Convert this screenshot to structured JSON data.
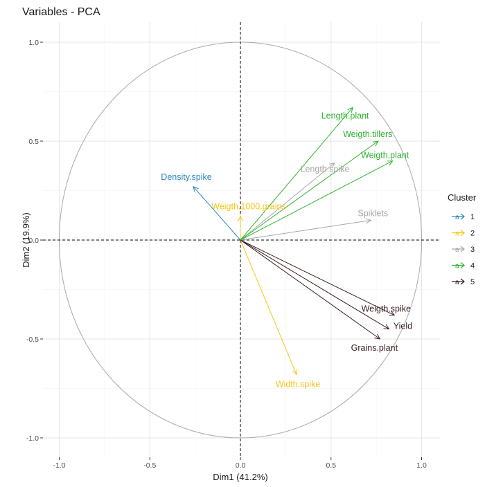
{
  "chart_data": {
    "type": "scatter",
    "subtype": "pca-variable-correlation-circle",
    "title": "Variables - PCA",
    "xlabel": "Dim1 (41.2%)",
    "ylabel": "Dim2 (19.9%)",
    "xlim": [
      -1.1,
      1.1
    ],
    "ylim": [
      -1.1,
      1.1
    ],
    "xticks": [
      -1.0,
      -0.5,
      0.0,
      0.5,
      1.0
    ],
    "yticks": [
      -1.0,
      -0.5,
      0.0,
      0.5,
      1.0
    ],
    "xtick_labels": [
      "-1.0",
      "-0.5",
      "0.0",
      "0.5",
      "1.0"
    ],
    "ytick_labels": [
      "-1.0",
      "-0.5",
      "0.0",
      "0.5",
      "1.0"
    ],
    "grid": true,
    "unit_circle": true,
    "reference_lines": {
      "x": 0,
      "y": 0,
      "style": "dashed"
    },
    "legend": {
      "title": "Cluster",
      "placement": "right",
      "entries": [
        {
          "label": "1",
          "color": "#2E86C1"
        },
        {
          "label": "2",
          "color": "#F5C518"
        },
        {
          "label": "3",
          "color": "#A6A6A6"
        },
        {
          "label": "4",
          "color": "#2DB52D"
        },
        {
          "label": "5",
          "color": "#3B1F1F"
        }
      ]
    },
    "series": [
      {
        "name": "Density.spike",
        "cluster": "1",
        "x": -0.26,
        "y": 0.27
      },
      {
        "name": "Weigth.1000.grains",
        "cluster": "2",
        "x": 0.0,
        "y": 0.12
      },
      {
        "name": "Width.spike",
        "cluster": "2",
        "x": 0.31,
        "y": -0.68
      },
      {
        "name": "Length.spike",
        "cluster": "3",
        "x": 0.52,
        "y": 0.39
      },
      {
        "name": "Spiklets",
        "cluster": "3",
        "x": 0.72,
        "y": 0.1
      },
      {
        "name": "Length.plant",
        "cluster": "4",
        "x": 0.62,
        "y": 0.67
      },
      {
        "name": "Weigth.tillers",
        "cluster": "4",
        "x": 0.76,
        "y": 0.5
      },
      {
        "name": "Weigth.plant",
        "cluster": "4",
        "x": 0.84,
        "y": 0.4
      },
      {
        "name": "Weigth.spike",
        "cluster": "5",
        "x": 0.85,
        "y": -0.38
      },
      {
        "name": "Yield",
        "cluster": "5",
        "x": 0.82,
        "y": -0.45
      },
      {
        "name": "Grains.plant",
        "cluster": "5",
        "x": 0.77,
        "y": -0.5
      }
    ]
  }
}
